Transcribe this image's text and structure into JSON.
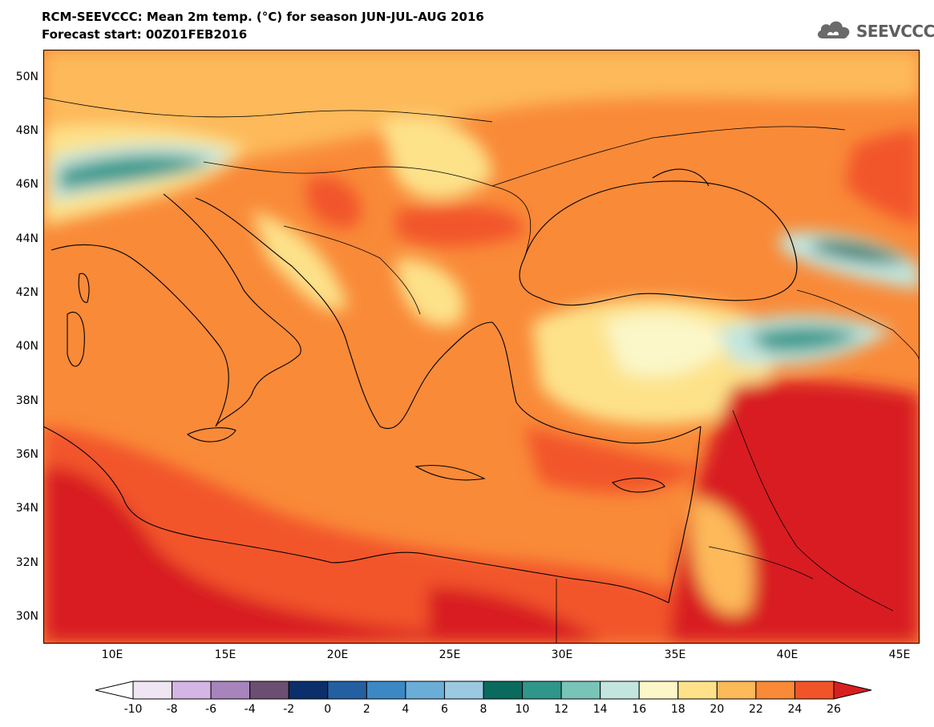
{
  "title": {
    "line1": "RCM-SEEVCCC: Mean 2m temp. (°C) for season JUN-JUL-AUG 2016",
    "line2": "Forecast start: 00Z01FEB2016"
  },
  "logo": {
    "text": "SEEVCCC",
    "icon": "cloud-icon"
  },
  "map": {
    "lon_range": [
      7,
      46
    ],
    "lat_range": [
      29,
      51
    ],
    "y_ticks": [
      "30N",
      "32N",
      "34N",
      "36N",
      "38N",
      "40N",
      "42N",
      "44N",
      "46N",
      "48N",
      "50N"
    ],
    "x_ticks": [
      "10E",
      "15E",
      "20E",
      "25E",
      "30E",
      "35E",
      "40E",
      "45E"
    ]
  },
  "colorbar": {
    "labels": [
      "-10",
      "-8",
      "-6",
      "-4",
      "-2",
      "0",
      "2",
      "4",
      "6",
      "8",
      "10",
      "12",
      "14",
      "16",
      "18",
      "20",
      "22",
      "24",
      "26"
    ],
    "colors": [
      "#ffffff",
      "#efe5f3",
      "#d5b5e4",
      "#a884bd",
      "#6b4f72",
      "#0a2f6a",
      "#245fa2",
      "#3c88c5",
      "#6aaed8",
      "#9bc9e2",
      "#0b6a5e",
      "#2f968a",
      "#78c5b7",
      "#c2e6df",
      "#fbf7c8",
      "#fde28a",
      "#fdb95a",
      "#f98a38",
      "#f2542a",
      "#d81f20"
    ]
  }
}
